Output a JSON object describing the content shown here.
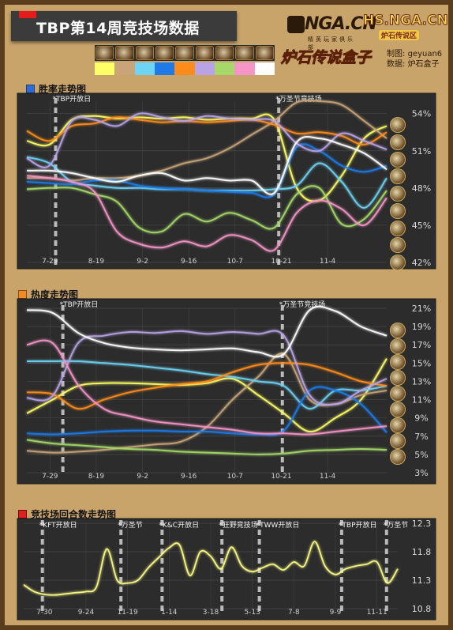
{
  "header": {
    "title": "TBP第14周竞技场数据",
    "logo_main": "NGA.CN",
    "logo_main_sub": "精英玩家俱乐部",
    "logo_hs": "HS.NGA.CN",
    "logo_hs_sub": "炉石传说区",
    "logo_box": "炉石传说盒子",
    "credit_made": "制图:",
    "credit_made_val": "geyuan6",
    "credit_data": "数据:",
    "credit_data_val": "炉石盒子"
  },
  "class_icons": [
    "druid-icon",
    "hunter-icon",
    "mage-icon",
    "paladin-icon",
    "priest-icon",
    "rogue-icon",
    "shaman-icon",
    "warlock-icon",
    "warrior-icon"
  ],
  "class_colors": [
    "#ffff66",
    "#c8a478",
    "#6ed3f5",
    "#1f7ae8",
    "#ff8c1a",
    "#b9a3e6",
    "#a6d96a",
    "#f595c8",
    "#ffffff"
  ],
  "chart_data": [
    {
      "type": "line",
      "title": "胜率走势图",
      "x_ticks": [
        "7-29",
        "8-19",
        "9-2",
        "9-16",
        "10-7",
        "10-21",
        "11-4"
      ],
      "y_ticks": [
        "54%",
        "51%",
        "48%",
        "45%",
        "42%"
      ],
      "ylim": [
        42,
        55
      ],
      "annotations": [
        {
          "label": "*TBP开放日",
          "at": 0.08
        },
        {
          "label": "*万圣节竞技场",
          "at": 0.7
        }
      ],
      "series": [
        {
          "color": "#ffff66",
          "values": [
            51.8,
            51.5,
            53.5,
            53.8,
            53.6,
            53.7,
            53.6,
            53.7,
            53.5,
            53.6,
            53.6,
            53.5,
            48.0,
            47.0,
            49.0,
            52.0,
            53.0
          ]
        },
        {
          "color": "#c8a478",
          "values": [
            48.8,
            48.8,
            48.6,
            48.8,
            48.8,
            49.0,
            49.4,
            50.0,
            50.4,
            51.2,
            52.3,
            53.4,
            54.9,
            55.0,
            54.7,
            53.4,
            52.0
          ]
        },
        {
          "color": "#6ed3f5",
          "values": [
            50.5,
            50.0,
            48.5,
            48.2,
            48.0,
            48.0,
            47.9,
            47.9,
            47.8,
            47.8,
            47.8,
            47.9,
            48.2,
            50.0,
            48.5,
            46.4,
            48.8
          ]
        },
        {
          "color": "#1f7ae8",
          "values": [
            48.5,
            48.4,
            48.3,
            48.6,
            48.6,
            48.2,
            48.0,
            47.9,
            47.8,
            47.7,
            47.6,
            47.5,
            51.3,
            51.0,
            49.8,
            49.3,
            49.8
          ]
        },
        {
          "color": "#ff8c1a",
          "values": [
            52.6,
            51.8,
            53.0,
            53.2,
            53.7,
            53.5,
            53.3,
            53.4,
            53.3,
            53.4,
            53.5,
            53.1,
            52.4,
            52.5,
            52.2,
            51.5,
            52.5
          ]
        },
        {
          "color": "#b9a3e6",
          "values": [
            50.4,
            49.8,
            53.4,
            53.5,
            53.0,
            54.0,
            53.7,
            53.4,
            53.8,
            53.6,
            53.5,
            53.4,
            51.6,
            51.0,
            52.4,
            51.8,
            51.1
          ]
        },
        {
          "color": "#a6d96a",
          "values": [
            47.9,
            48.0,
            48.0,
            47.5,
            46.9,
            44.8,
            44.5,
            45.9,
            45.3,
            46.0,
            45.4,
            44.8,
            47.5,
            48.0,
            45.1,
            45.5,
            47.8
          ]
        },
        {
          "color": "#f595c8",
          "values": [
            49.0,
            48.8,
            48.5,
            47.7,
            44.5,
            43.5,
            43.2,
            43.7,
            43.3,
            44.2,
            43.8,
            43.0,
            46.0,
            47.0,
            46.3,
            45.0,
            47.2
          ]
        },
        {
          "color": "#ffffff",
          "values": [
            49.4,
            49.4,
            49.2,
            48.8,
            48.5,
            49.0,
            49.2,
            48.6,
            48.8,
            48.6,
            48.6,
            47.6,
            51.7,
            52.0,
            51.5,
            50.8,
            49.5
          ]
        }
      ]
    },
    {
      "type": "line",
      "title": "热度走势图",
      "x_ticks": [
        "7-29",
        "8-19",
        "9-2",
        "9-16",
        "10-7",
        "10-21",
        "11-4"
      ],
      "y_ticks": [
        "21%",
        "19%",
        "17%",
        "15%",
        "13%",
        "11%",
        "9%",
        "7%",
        "5%",
        "3%"
      ],
      "ylim": [
        3,
        21
      ],
      "annotations": [
        {
          "label": "*TBP开放日",
          "at": 0.1
        },
        {
          "label": "*万圣节竞技场",
          "at": 0.71
        }
      ],
      "series": [
        {
          "color": "#ffff66",
          "values": [
            9.5,
            11.0,
            12.5,
            12.8,
            12.8,
            12.7,
            12.6,
            12.8,
            13.3,
            11.5,
            9.5,
            7.5,
            9.0,
            11.0,
            15.5
          ]
        },
        {
          "color": "#c8a478",
          "values": [
            5.4,
            5.2,
            5.3,
            5.5,
            5.8,
            6.1,
            6.4,
            8.0,
            11.0,
            13.5,
            16.0,
            11.0,
            10.5,
            11.5,
            12.0
          ]
        },
        {
          "color": "#6ed3f5",
          "values": [
            15.2,
            15.2,
            15.2,
            15.0,
            14.8,
            14.5,
            14.2,
            13.8,
            13.5,
            13.0,
            12.5,
            10.0,
            12.0,
            12.0,
            12.5
          ]
        },
        {
          "color": "#1f7ae8",
          "values": [
            7.3,
            7.2,
            7.3,
            7.5,
            7.6,
            7.6,
            7.5,
            7.5,
            7.3,
            7.2,
            7.6,
            12.0,
            12.0,
            10.5,
            7.4
          ]
        },
        {
          "color": "#ff8c1a",
          "values": [
            11.8,
            11.6,
            10.0,
            11.0,
            11.8,
            12.3,
            12.7,
            13.0,
            14.0,
            14.8,
            15.0,
            14.8,
            14.0,
            13.0,
            12.5
          ]
        },
        {
          "color": "#b9a3e6",
          "values": [
            11.2,
            11.4,
            17.2,
            18.0,
            18.4,
            18.3,
            18.5,
            18.2,
            18.4,
            18.2,
            18.0,
            11.5,
            10.5,
            12.0,
            13.3
          ]
        },
        {
          "color": "#a6d96a",
          "values": [
            6.6,
            6.2,
            6.0,
            5.8,
            5.6,
            5.5,
            5.3,
            5.2,
            5.1,
            5.0,
            5.1,
            5.4,
            5.5,
            5.6,
            5.5
          ]
        },
        {
          "color": "#f595c8",
          "values": [
            17.0,
            17.2,
            12.6,
            10.0,
            9.2,
            8.6,
            8.3,
            8.0,
            7.7,
            7.3,
            7.3,
            7.2,
            7.5,
            7.8,
            8.1
          ]
        },
        {
          "color": "#ffffff",
          "values": [
            20.8,
            20.5,
            18.3,
            17.2,
            16.7,
            16.5,
            16.4,
            16.5,
            16.6,
            16.2,
            16.0,
            20.8,
            20.7,
            19.0,
            18.0
          ]
        }
      ]
    },
    {
      "type": "line",
      "title": "竞技场回合数走势图",
      "x_ticks": [
        "7-30",
        "9-24",
        "11-19",
        "1-14",
        "3-18",
        "5-13",
        "7-8",
        "9-9",
        "11-11"
      ],
      "y_ticks": [
        "12.3",
        "11.8",
        "11.3",
        "10.8"
      ],
      "ylim": [
        10.8,
        12.3
      ],
      "annotations": [
        {
          "label": "*KFT开放日",
          "at": 0.05
        },
        {
          "label": "*万圣节",
          "at": 0.26
        },
        {
          "label": "*K&C开放日",
          "at": 0.37
        },
        {
          "label": "*狂野竞技场",
          "at": 0.53
        },
        {
          "label": "*TWW开放日",
          "at": 0.63
        },
        {
          "label": "*TBP开放日",
          "at": 0.85
        },
        {
          "label": "*万圣节",
          "at": 0.97
        }
      ],
      "series": [
        {
          "color": "#ffff88",
          "values": [
            11.22,
            11.1,
            11.05,
            11.04,
            11.06,
            11.08,
            11.1,
            11.18,
            11.85,
            11.3,
            11.25,
            11.3,
            11.52,
            11.7,
            11.87,
            11.92,
            11.38,
            11.8,
            11.72,
            11.5,
            11.88,
            11.55,
            11.45,
            11.52,
            11.58,
            11.48,
            11.62,
            11.55,
            11.98,
            11.55,
            11.4,
            11.5,
            11.55,
            11.58,
            11.62,
            11.25,
            11.5
          ]
        }
      ]
    }
  ],
  "panels": {
    "p1_title": "胜率走势图",
    "p2_title": "热度走势图",
    "p3_title": "竞技场回合数走势图"
  }
}
